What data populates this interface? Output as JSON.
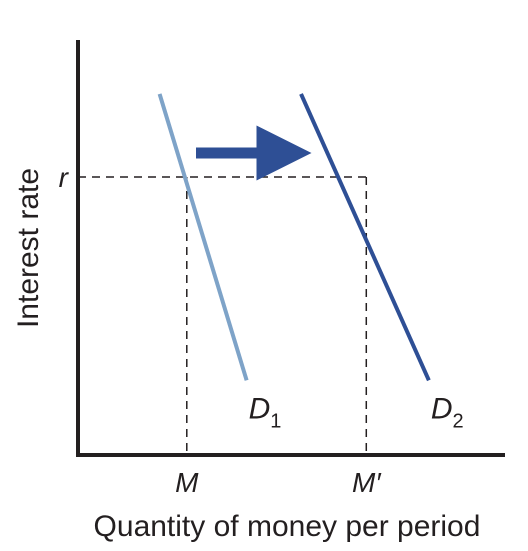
{
  "chart_data": {
    "type": "line",
    "title": "",
    "xlabel": "Quantity of money per period",
    "ylabel": "Interest rate",
    "x_ticks": [
      "M",
      "M′"
    ],
    "y_ticks": [
      "r"
    ],
    "grid": false,
    "annotations": [
      {
        "type": "arrow",
        "meaning": "demand curve shifts right",
        "color": "#2e4f95"
      },
      {
        "type": "dashed-lines",
        "meaning": "equilibrium at interest rate r"
      }
    ],
    "series": [
      {
        "name": "D1",
        "label_main": "D",
        "label_sub": "1",
        "color": "#7ea3c8",
        "points": [
          {
            "x": 1.0,
            "y": 8.7
          },
          {
            "x": 4.2,
            "y": 1.8
          }
        ]
      },
      {
        "name": "D2",
        "label_main": "D",
        "label_sub": "2",
        "color": "#2e4f95",
        "points": [
          {
            "x": 6.2,
            "y": 8.7
          },
          {
            "x": 10.9,
            "y": 1.8
          }
        ]
      }
    ],
    "reference": {
      "r": 6.7,
      "M": 2.0,
      "M_prime": 8.6
    },
    "xlim": [
      -2.0,
      13.7
    ],
    "ylim": [
      0,
      10.0
    ]
  }
}
